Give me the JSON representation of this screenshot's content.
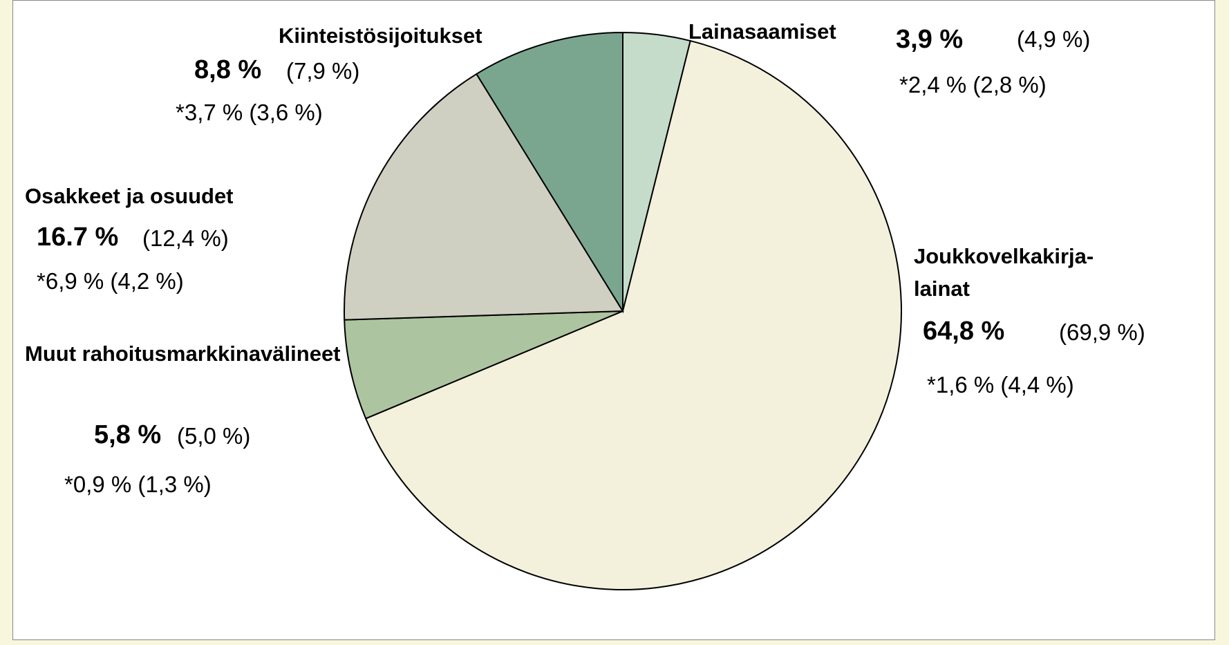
{
  "chart_data": {
    "type": "pie",
    "categories": [
      "Lainasaamiset",
      "Joukkovelkakirja-lainat",
      "Muut rahoitusmarkkinavälineet",
      "Osakkeet ja osuudet",
      "Kiinteistösijoitukset"
    ],
    "values": [
      3.9,
      64.8,
      5.8,
      16.7,
      8.8
    ],
    "value_labels": [
      "3,9 %",
      "64,8 %",
      "5,8 %",
      "16.7 %",
      "8,8 %"
    ],
    "previous_labels": [
      "(4,9 %)",
      "(69,9 %)",
      "(5,0 %)",
      "(12,4 %)",
      "(7,9 %)"
    ],
    "notes": [
      "*2,4 % (2,8 %)",
      "*1,6 % (4,4 %)",
      "*0,9 % (1,3 %)",
      "*6,9 % (4,2 %)",
      "*3,7 % (3,6 %)"
    ],
    "colors": [
      "#c5dccb",
      "#f3f0dc",
      "#adc4a0",
      "#cfcfc2",
      "#7aa68f"
    ]
  }
}
